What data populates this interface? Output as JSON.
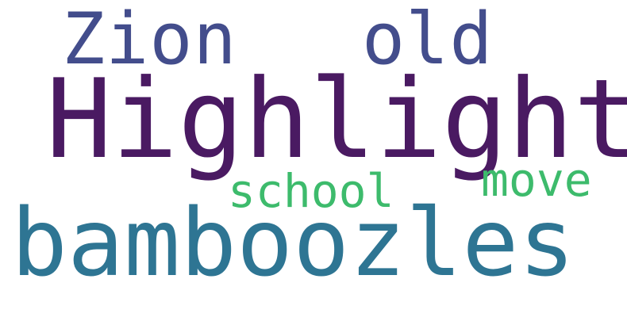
{
  "word_cloud": {
    "background": "#ffffff",
    "words": [
      {
        "id": "zion",
        "text": "Zion",
        "color": "#434d8c"
      },
      {
        "id": "old",
        "text": "old",
        "color": "#434d8c"
      },
      {
        "id": "highlight",
        "text": "Highlight",
        "color": "#4a1a62"
      },
      {
        "id": "school",
        "text": "school",
        "color": "#3dbb6c"
      },
      {
        "id": "move",
        "text": "move",
        "color": "#3dbb6c"
      },
      {
        "id": "bamboozles",
        "text": "bamboozles",
        "color": "#2e7593"
      }
    ]
  }
}
